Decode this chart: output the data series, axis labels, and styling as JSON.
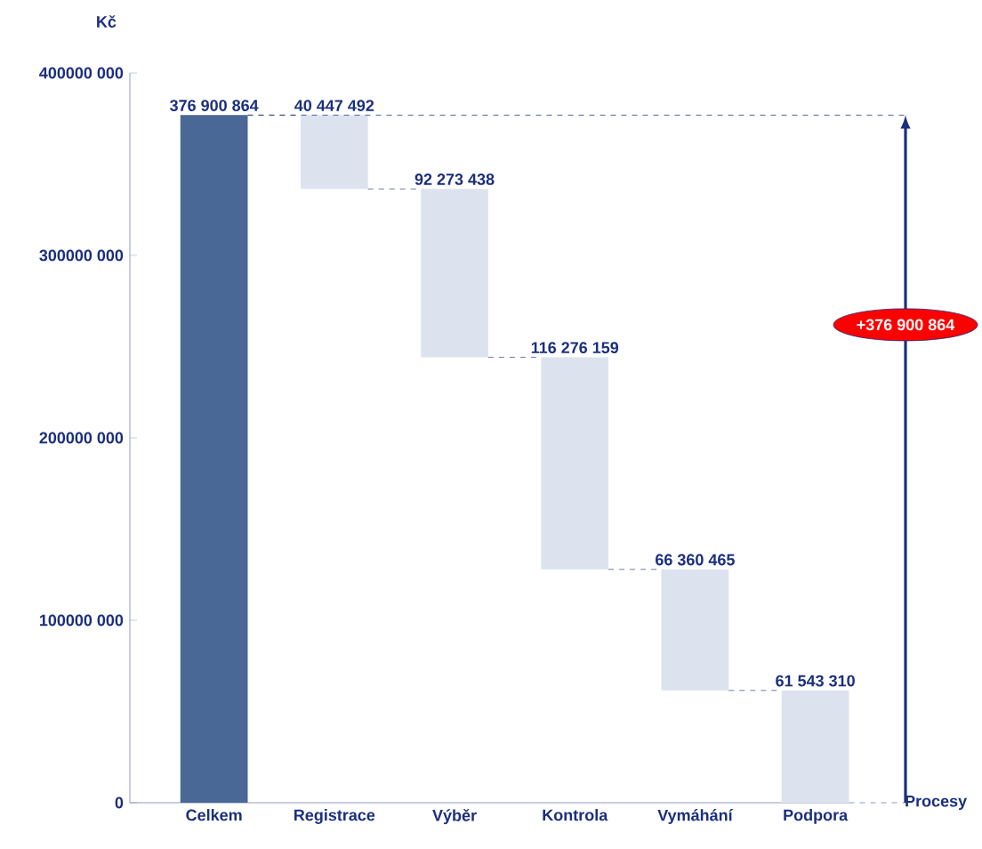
{
  "chart_data": {
    "type": "bar",
    "ylabel": "Kč",
    "xlabel": "Procesy",
    "categories": [
      "Celkem",
      "Registrace",
      "Výběr",
      "Kontrola",
      "Vymáhání",
      "Podpora"
    ],
    "values": [
      376900864,
      40447492,
      92273438,
      116276159,
      66360465,
      61543310
    ],
    "base": [
      0,
      336453372,
      244179934,
      127903775,
      61543310,
      0
    ],
    "colors": [
      "#4a6896",
      "#dde3ee",
      "#dde3ee",
      "#dde3ee",
      "#dde3ee",
      "#dde3ee"
    ],
    "value_labels": [
      "376 900 864",
      "40 447 492",
      "92 273 438",
      "116 276 159",
      "66 360 465",
      "61 543 310"
    ],
    "ylim": [
      0,
      400000000
    ],
    "yticks": [
      {
        "value": 0,
        "label": "0"
      },
      {
        "value": 100000000,
        "label": "100000 000"
      },
      {
        "value": 200000000,
        "label": "200000 000"
      },
      {
        "value": 300000000,
        "label": "300000 000"
      },
      {
        "value": 400000000,
        "label": "400000 000"
      }
    ],
    "ref_lines": [
      {
        "axis": "y",
        "value": 376900864,
        "label": "+376 900 864",
        "color": "#1f3f8a",
        "line_style": "dashed"
      }
    ],
    "grid": false
  }
}
